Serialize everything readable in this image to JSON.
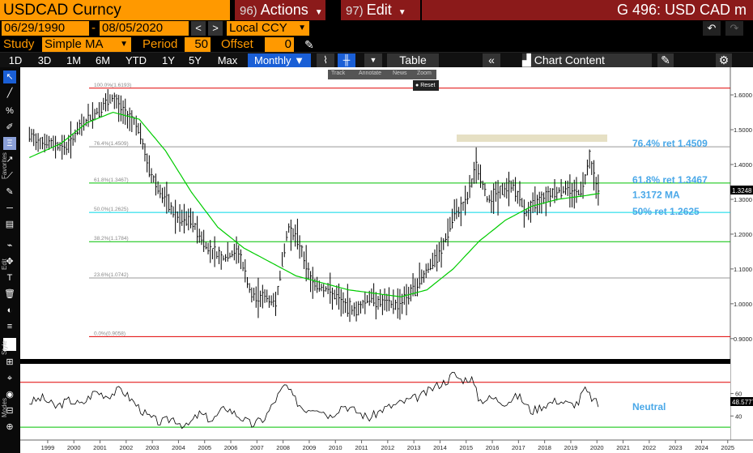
{
  "header": {
    "ticker": "USDCAD Curncy",
    "actions_num": "96)",
    "actions_label": "Actions",
    "edit_num": "97)",
    "edit_label": "Edit",
    "right_title": "G 496: USD CAD m"
  },
  "range": {
    "start": "06/29/1990",
    "dash": "-",
    "end": "08/05/2020",
    "currency": "Local CCY"
  },
  "study": {
    "label": "Study",
    "value": "Simple MA",
    "period_label": "Period",
    "period_value": "50",
    "offset_label": "Offset",
    "offset_value": "0"
  },
  "timeframes": [
    "1D",
    "3D",
    "1M",
    "6M",
    "YTD",
    "1Y",
    "5Y",
    "Max"
  ],
  "frequency": "Monthly",
  "toolbar": {
    "table_label": "Table",
    "chart_content_label": "Chart Content"
  },
  "popup": {
    "items": [
      "Track",
      "Annotate",
      "News",
      "Zoom"
    ],
    "reset": "Reset"
  },
  "leftbar_labels": [
    "Favorites",
    "Edit",
    "Style",
    "Modes"
  ],
  "colors": {
    "orange": "#ff9900",
    "header_red": "#8b1a1a",
    "accent_blue": "#1a5fd6",
    "fib_red": "#e00000",
    "fib_green": "#00c000",
    "fib_cyan": "#00d8e8",
    "fib_grey": "#999999",
    "ma_green": "#00cc00",
    "label_blue": "#4aa8e8"
  },
  "chart_data": [
    {
      "type": "line",
      "subtype": "monthly price bars with moving average and fibonacci retracements",
      "y_ticks": [
        "1.6000",
        "1.5000",
        "1.4000",
        "1.3000",
        "1.2000",
        "1.1000",
        "1.0000",
        "0.9000"
      ],
      "ylim": [
        0.86,
        1.67
      ],
      "x_ticks": [
        "1999",
        "2000",
        "2001",
        "2002",
        "2003",
        "2004",
        "2005",
        "2006",
        "2007",
        "2008",
        "2009",
        "2010",
        "2011",
        "2012",
        "2013",
        "2014",
        "2015",
        "2016",
        "2017",
        "2018",
        "2019",
        "2020",
        "2021",
        "2022",
        "2023",
        "2024",
        "2025"
      ],
      "last_price_label": "1.3248",
      "fib_levels": [
        {
          "label": "100.0%(1.6193)",
          "value": 1.6193,
          "color": "#e00000"
        },
        {
          "label": "76.4%(1.4509)",
          "value": 1.4509,
          "color": "#999999"
        },
        {
          "label": "61.8%(1.3467)",
          "value": 1.3467,
          "color": "#00c000"
        },
        {
          "label": "50.0%(1.2625)",
          "value": 1.2625,
          "color": "#00d8e8"
        },
        {
          "label": "38.2%(1.1784)",
          "value": 1.1784,
          "color": "#00c000"
        },
        {
          "label": "23.6%(1.0742)",
          "value": 1.0742,
          "color": "#999999"
        },
        {
          "label": "0.0%(0.9058)",
          "value": 0.9058,
          "color": "#e00000"
        }
      ],
      "annotations": [
        "76.4% ret 1.4509",
        "61.8% ret 1.3467",
        "1.3172 MA",
        "50% ret 1.2625"
      ],
      "price_path": {
        "x": [
          1998.8,
          1999.5,
          2000.2,
          2000.9,
          2001.5,
          2002.0,
          2002.4,
          2002.9,
          2003.4,
          2003.9,
          2004.5,
          2005.0,
          2005.6,
          2006.2,
          2006.8,
          2007.3,
          2007.8,
          2008.2,
          2008.7,
          2009.1,
          2009.6,
          2010.2,
          2010.8,
          2011.3,
          2011.8,
          2012.4,
          2012.9,
          2013.5,
          2014.0,
          2014.5,
          2015.0,
          2015.5,
          2015.9,
          2016.3,
          2016.8,
          2017.3,
          2017.8,
          2018.3,
          2018.8,
          2019.3,
          2019.8,
          2020.0,
          2020.2,
          2020.4,
          2020.6
        ],
        "y": [
          1.48,
          1.46,
          1.45,
          1.52,
          1.56,
          1.59,
          1.55,
          1.52,
          1.38,
          1.31,
          1.24,
          1.24,
          1.16,
          1.13,
          1.15,
          1.02,
          1.02,
          1.0,
          1.22,
          1.18,
          1.06,
          1.04,
          1.0,
          0.98,
          1.02,
          1.0,
          1.0,
          1.04,
          1.1,
          1.14,
          1.25,
          1.29,
          1.4,
          1.3,
          1.32,
          1.34,
          1.26,
          1.3,
          1.32,
          1.33,
          1.32,
          1.34,
          1.43,
          1.36,
          1.3248
        ]
      },
      "ma_path": {
        "x": [
          1998.8,
          2000.0,
          2001.0,
          2002.0,
          2003.0,
          2004.0,
          2005.0,
          2006.0,
          2007.0,
          2008.0,
          2009.0,
          2010.0,
          2011.0,
          2012.0,
          2013.0,
          2014.0,
          2015.0,
          2016.0,
          2017.0,
          2018.0,
          2019.0,
          2020.0,
          2020.6
        ],
        "y": [
          1.42,
          1.46,
          1.52,
          1.55,
          1.53,
          1.44,
          1.32,
          1.22,
          1.16,
          1.12,
          1.08,
          1.06,
          1.04,
          1.03,
          1.02,
          1.04,
          1.1,
          1.18,
          1.24,
          1.28,
          1.3,
          1.31,
          1.3172
        ]
      }
    },
    {
      "type": "line",
      "subtype": "RSI oscillator",
      "y_ticks": [
        "60",
        "40"
      ],
      "ylim": [
        20,
        85
      ],
      "upper_band": 70,
      "lower_band": 30,
      "last_value_label": "48.5777",
      "annotation": "Neutral",
      "x": [
        1998.8,
        1999.3,
        1999.8,
        2000.3,
        2000.8,
        2001.3,
        2001.8,
        2002.3,
        2002.8,
        2003.3,
        2003.8,
        2004.3,
        2004.8,
        2005.3,
        2005.8,
        2006.3,
        2006.8,
        2007.3,
        2007.8,
        2008.3,
        2008.6,
        2008.9,
        2009.3,
        2009.8,
        2010.3,
        2010.8,
        2011.3,
        2011.8,
        2012.3,
        2012.8,
        2013.3,
        2013.8,
        2014.3,
        2014.8,
        2015.0,
        2015.3,
        2015.7,
        2016.0,
        2016.5,
        2017.0,
        2017.5,
        2018.0,
        2018.5,
        2019.0,
        2019.5,
        2019.8,
        2020.0,
        2020.3,
        2020.6
      ],
      "y": [
        52,
        56,
        48,
        54,
        50,
        62,
        58,
        64,
        52,
        40,
        34,
        38,
        30,
        42,
        36,
        48,
        40,
        32,
        38,
        58,
        68,
        56,
        46,
        48,
        40,
        50,
        44,
        38,
        46,
        50,
        54,
        58,
        66,
        72,
        78,
        72,
        74,
        54,
        56,
        52,
        58,
        44,
        50,
        54,
        50,
        52,
        64,
        56,
        48.58
      ]
    }
  ]
}
